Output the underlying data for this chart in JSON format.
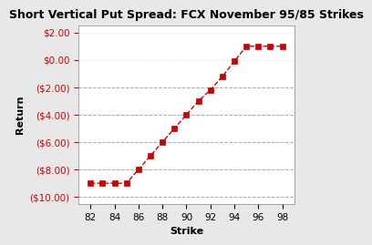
{
  "title": "Short Vertical Put Spread: FCX November 95/85 Strikes",
  "xlabel": "Strike",
  "ylabel": "Return",
  "x": [
    82,
    83,
    84,
    85,
    86,
    87,
    88,
    89,
    90,
    91,
    92,
    93,
    94,
    95,
    96,
    97,
    98
  ],
  "y": [
    -9.0,
    -9.0,
    -9.0,
    -9.0,
    -8.0,
    -7.0,
    -6.0,
    -5.0,
    -4.0,
    -3.0,
    -2.2,
    -1.2,
    -0.1,
    1.0,
    1.0,
    1.0,
    1.0
  ],
  "line_color": "#CC0000",
  "marker_color": "#CC0000",
  "marker": "s",
  "xlim": [
    81,
    99
  ],
  "ylim": [
    -10.5,
    2.5
  ],
  "xticks": [
    82,
    84,
    86,
    88,
    90,
    92,
    94,
    96,
    98
  ],
  "yticks": [
    -10,
    -8,
    -6,
    -4,
    -2,
    0,
    2
  ],
  "ytick_labels": [
    "($10.00)",
    "($8.00)",
    "($6.00)",
    "($4.00)",
    "($2.00)",
    "$0.00",
    "$2.00"
  ],
  "grid_color": "#AAAAAA",
  "background_color": "#FFFFFF",
  "title_fontsize": 9,
  "axis_label_fontsize": 8,
  "tick_fontsize": 7.5,
  "tick_color": "#CC0000"
}
